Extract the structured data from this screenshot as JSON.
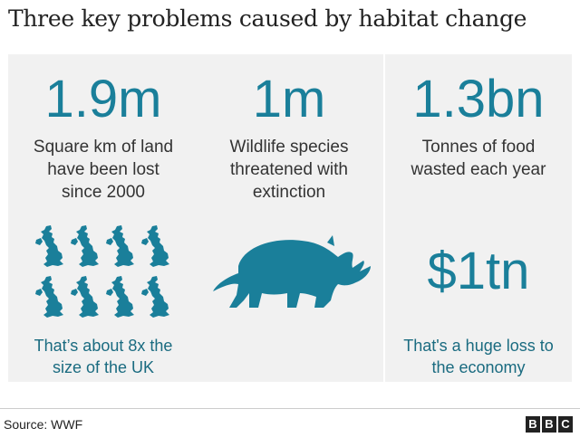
{
  "title": "Three key problems caused by habitat change",
  "panels": [
    {
      "stat": "1.9m",
      "description": "Square km of land have been lost since 2000",
      "footnote": "That’s about 8x the size of the UK",
      "icon": "uk-map-icon",
      "icon_count": 8
    },
    {
      "stat": "1m",
      "description": "Wildlife species threatened with extinction",
      "icon": "rhino-icon"
    },
    {
      "stat": "1.3bn",
      "description": "Tonnes of food wasted each year",
      "secondary_stat": "$1tn",
      "footnote": "That's a huge loss to the economy"
    }
  ],
  "source": "Source: WWF",
  "logo": [
    "B",
    "B",
    "C"
  ],
  "colors": {
    "accent": "#1a7f9a",
    "panel_bg": "#f1f1f1",
    "text": "#222222"
  }
}
